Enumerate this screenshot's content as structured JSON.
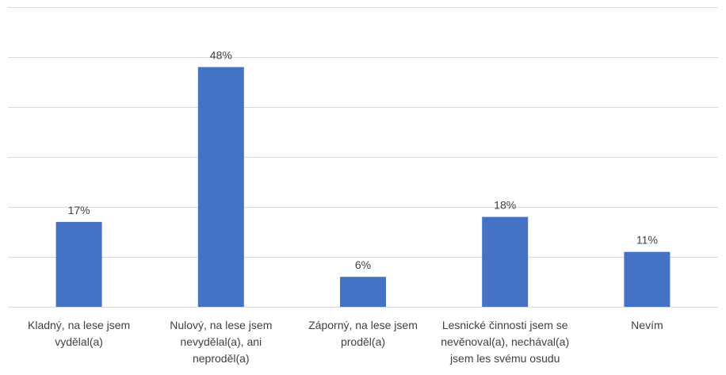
{
  "chart_data": {
    "type": "bar",
    "categories": [
      [
        "Kladný, na lese jsem",
        "vydělal(a)"
      ],
      [
        "Nulový, na lese jsem",
        "nevydělal(a), ani",
        "neproděl(a)"
      ],
      [
        "Záporný, na lese jsem",
        "proděl(a)"
      ],
      [
        "Lesnické činnosti jsem se",
        "nevěnoval(a), nechával(a)",
        "jsem les svému osudu"
      ],
      [
        "Nevím"
      ]
    ],
    "values": [
      17,
      48,
      6,
      18,
      11
    ],
    "data_labels": [
      "17%",
      "48%",
      "6%",
      "18%",
      "11%"
    ],
    "ylim": [
      0,
      60
    ],
    "gridlines": true,
    "bar_color": "#4472c4",
    "grid_color": "#d9d9d9",
    "text_color": "#404040"
  }
}
